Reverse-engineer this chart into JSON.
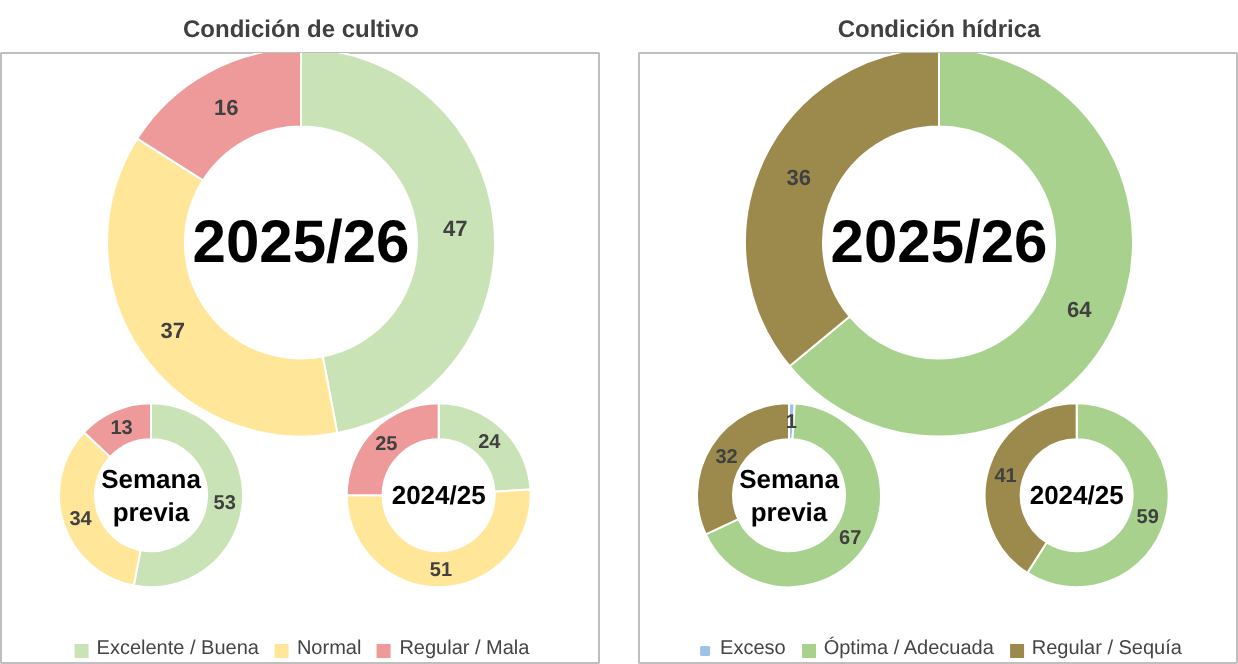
{
  "chart_data": [
    {
      "type": "donut",
      "title": "Condición de cultivo",
      "legend": "bottom",
      "categories": [
        "Excelente / Buena",
        "Normal",
        "Regular / Mala"
      ],
      "values": [
        47,
        37,
        16
      ],
      "colors": [
        "#c9e3b6",
        "#ffe699",
        "#ef9a9a"
      ],
      "data_labels": true,
      "annotations": [
        "2025/26"
      ]
    },
    {
      "type": "donut",
      "categories": [
        null,
        null,
        null
      ],
      "values": [
        53,
        34,
        13
      ],
      "colors": [
        "#c9e3b6",
        "#ffe699",
        "#ef9a9a"
      ],
      "data_labels": true,
      "annotations": [
        "Semana\nprevia"
      ]
    },
    {
      "type": "donut",
      "categories": [
        null,
        null,
        null
      ],
      "values": [
        24,
        51,
        25
      ],
      "colors": [
        "#c9e3b6",
        "#ffe699",
        "#ef9a9a"
      ],
      "data_labels": true,
      "annotations": [
        "2024/25"
      ]
    },
    {
      "type": "donut",
      "title": "Condición hídrica",
      "legend": "bottom",
      "categories": [
        "Exceso",
        "Óptima / Adecuada",
        "Regular / Sequía"
      ],
      "values": [
        0,
        64,
        36
      ],
      "colors": [
        "#9dc3e6",
        "#a9d18e",
        "#9c8a4c"
      ],
      "value_labels": [
        null,
        "64",
        "36"
      ],
      "annotations": [
        "2025/26"
      ]
    },
    {
      "type": "donut",
      "categories": [
        null,
        null,
        null
      ],
      "values": [
        1,
        67,
        32
      ],
      "colors": [
        "#9dc3e6",
        "#a9d18e",
        "#9c8a4c"
      ],
      "value_labels": [
        "1",
        "67",
        "32"
      ],
      "annotations": [
        "Semana\nprevia"
      ]
    },
    {
      "type": "donut",
      "categories": [
        null,
        null,
        null
      ],
      "values": [
        0,
        59,
        41
      ],
      "colors": [
        "#9dc3e6",
        "#a9d18e",
        "#9c8a4c"
      ],
      "value_labels": [
        null,
        "59",
        "41"
      ],
      "annotations": [
        "2024/25"
      ]
    }
  ]
}
